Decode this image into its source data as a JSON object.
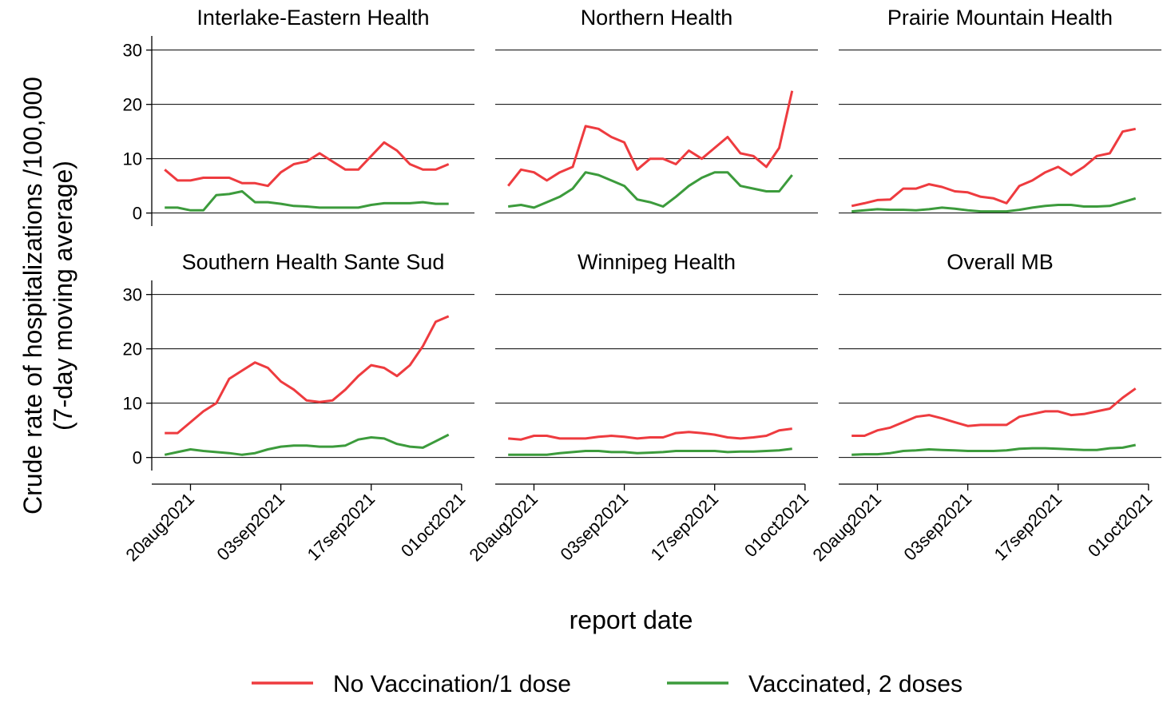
{
  "ylabel": [
    "Crude rate of hospitalizations /100,000",
    "(7-day moving average)"
  ],
  "xlabel": "report date",
  "chart_data": [
    {
      "type": "line",
      "title": "Interlake-Eastern Health",
      "x": [
        "2021-08-16",
        "2021-08-18",
        "2021-08-20",
        "2021-08-22",
        "2021-08-24",
        "2021-08-26",
        "2021-08-28",
        "2021-08-30",
        "2021-09-01",
        "2021-09-03",
        "2021-09-05",
        "2021-09-07",
        "2021-09-09",
        "2021-09-11",
        "2021-09-13",
        "2021-09-15",
        "2021-09-17",
        "2021-09-19",
        "2021-09-21",
        "2021-09-23",
        "2021-09-25",
        "2021-09-27",
        "2021-09-29"
      ],
      "series": [
        {
          "name": "No Vaccination/1 dose",
          "color": "#ee3b3f",
          "values": [
            8,
            6,
            6,
            6.5,
            6.5,
            6.5,
            5.5,
            5.5,
            5,
            7.5,
            9,
            9.5,
            11,
            9.5,
            8,
            8,
            10.5,
            13,
            11.5,
            9,
            8,
            8,
            9
          ]
        },
        {
          "name": "Vaccinated, 2 doses",
          "color": "#3c9b3c",
          "values": [
            1,
            1,
            0.5,
            0.5,
            3.3,
            3.5,
            4,
            2,
            2,
            1.7,
            1.3,
            1.2,
            1,
            1,
            1,
            1,
            1.5,
            1.8,
            1.8,
            1.8,
            2,
            1.7,
            1.7
          ]
        }
      ],
      "xlim": [
        "2021-08-14",
        "2021-10-03"
      ],
      "xticks": [
        {
          "value": "2021-08-20",
          "label": "20aug2021"
        },
        {
          "value": "2021-09-03",
          "label": "03sep2021"
        },
        {
          "value": "2021-09-17",
          "label": "17sep2021"
        },
        {
          "value": "2021-10-01",
          "label": "01oct2021"
        }
      ],
      "ylim": [
        -2.4,
        32.6
      ],
      "yticks": [
        0,
        10,
        20,
        30
      ],
      "grid": true
    },
    {
      "type": "line",
      "title": "Northern Health",
      "x": [
        "2021-08-16",
        "2021-08-18",
        "2021-08-20",
        "2021-08-22",
        "2021-08-24",
        "2021-08-26",
        "2021-08-28",
        "2021-08-30",
        "2021-09-01",
        "2021-09-03",
        "2021-09-05",
        "2021-09-07",
        "2021-09-09",
        "2021-09-11",
        "2021-09-13",
        "2021-09-15",
        "2021-09-17",
        "2021-09-19",
        "2021-09-21",
        "2021-09-23",
        "2021-09-25",
        "2021-09-27",
        "2021-09-29"
      ],
      "series": [
        {
          "name": "No Vaccination/1 dose",
          "color": "#ee3b3f",
          "values": [
            5,
            8,
            7.5,
            6,
            7.5,
            8.5,
            16,
            15.5,
            14,
            13,
            8,
            10,
            10,
            9,
            11.5,
            10,
            12,
            14,
            11,
            10.5,
            8.5,
            12,
            22.5
          ]
        },
        {
          "name": "Vaccinated, 2 doses",
          "color": "#3c9b3c",
          "values": [
            1.2,
            1.5,
            1,
            2,
            3,
            4.5,
            7.5,
            7,
            6,
            5,
            2.5,
            2,
            1.2,
            3,
            5,
            6.5,
            7.5,
            7.5,
            5,
            4.5,
            4,
            4,
            7
          ]
        }
      ],
      "xlim": [
        "2021-08-14",
        "2021-10-03"
      ],
      "xticks": [
        {
          "value": "2021-08-20",
          "label": "20aug2021"
        },
        {
          "value": "2021-09-03",
          "label": "03sep2021"
        },
        {
          "value": "2021-09-17",
          "label": "17sep2021"
        },
        {
          "value": "2021-10-01",
          "label": "01oct2021"
        }
      ],
      "ylim": [
        -2.4,
        32.6
      ],
      "yticks": [
        0,
        10,
        20,
        30
      ],
      "grid": true
    },
    {
      "type": "line",
      "title": "Prairie Mountain Health",
      "x": [
        "2021-08-16",
        "2021-08-18",
        "2021-08-20",
        "2021-08-22",
        "2021-08-24",
        "2021-08-26",
        "2021-08-28",
        "2021-08-30",
        "2021-09-01",
        "2021-09-03",
        "2021-09-05",
        "2021-09-07",
        "2021-09-09",
        "2021-09-11",
        "2021-09-13",
        "2021-09-15",
        "2021-09-17",
        "2021-09-19",
        "2021-09-21",
        "2021-09-23",
        "2021-09-25",
        "2021-09-27",
        "2021-09-29"
      ],
      "series": [
        {
          "name": "No Vaccination/1 dose",
          "color": "#ee3b3f",
          "values": [
            1.3,
            1.8,
            2.4,
            2.5,
            4.5,
            4.5,
            5.3,
            4.8,
            4,
            3.8,
            3,
            2.7,
            1.8,
            5,
            6,
            7.5,
            8.5,
            7,
            8.5,
            10.5,
            11,
            15,
            15.5
          ]
        },
        {
          "name": "Vaccinated, 2 doses",
          "color": "#3c9b3c",
          "values": [
            0.3,
            0.5,
            0.7,
            0.6,
            0.6,
            0.5,
            0.7,
            1,
            0.8,
            0.5,
            0.3,
            0.3,
            0.3,
            0.6,
            1,
            1.3,
            1.5,
            1.5,
            1.2,
            1.2,
            1.3,
            2,
            2.7
          ]
        }
      ],
      "xlim": [
        "2021-08-14",
        "2021-10-03"
      ],
      "xticks": [
        {
          "value": "2021-08-20",
          "label": "20aug2021"
        },
        {
          "value": "2021-09-03",
          "label": "03sep2021"
        },
        {
          "value": "2021-09-17",
          "label": "17sep2021"
        },
        {
          "value": "2021-10-01",
          "label": "01oct2021"
        }
      ],
      "ylim": [
        -2.4,
        32.6
      ],
      "yticks": [
        0,
        10,
        20,
        30
      ],
      "grid": true
    },
    {
      "type": "line",
      "title": "Southern Health Sante Sud",
      "x": [
        "2021-08-16",
        "2021-08-18",
        "2021-08-20",
        "2021-08-22",
        "2021-08-24",
        "2021-08-26",
        "2021-08-28",
        "2021-08-30",
        "2021-09-01",
        "2021-09-03",
        "2021-09-05",
        "2021-09-07",
        "2021-09-09",
        "2021-09-11",
        "2021-09-13",
        "2021-09-15",
        "2021-09-17",
        "2021-09-19",
        "2021-09-21",
        "2021-09-23",
        "2021-09-25",
        "2021-09-27",
        "2021-09-29"
      ],
      "series": [
        {
          "name": "No Vaccination/1 dose",
          "color": "#ee3b3f",
          "values": [
            4.5,
            4.5,
            6.5,
            8.5,
            10,
            14.5,
            16,
            17.5,
            16.5,
            14,
            12.5,
            10.5,
            10.2,
            10.5,
            12.5,
            15,
            17,
            16.5,
            15,
            17,
            20.5,
            25,
            26
          ]
        },
        {
          "name": "Vaccinated, 2 doses",
          "color": "#3c9b3c",
          "values": [
            0.5,
            1,
            1.5,
            1.2,
            1,
            0.8,
            0.5,
            0.8,
            1.5,
            2,
            2.2,
            2.2,
            2,
            2,
            2.2,
            3.3,
            3.7,
            3.5,
            2.5,
            2,
            1.8,
            3,
            4.2
          ]
        }
      ],
      "xlim": [
        "2021-08-14",
        "2021-10-03"
      ],
      "xticks": [
        {
          "value": "2021-08-20",
          "label": "20aug2021"
        },
        {
          "value": "2021-09-03",
          "label": "03sep2021"
        },
        {
          "value": "2021-09-17",
          "label": "17sep2021"
        },
        {
          "value": "2021-10-01",
          "label": "01oct2021"
        }
      ],
      "ylim": [
        -2.4,
        32.6
      ],
      "yticks": [
        0,
        10,
        20,
        30
      ],
      "grid": true
    },
    {
      "type": "line",
      "title": "Winnipeg Health",
      "x": [
        "2021-08-16",
        "2021-08-18",
        "2021-08-20",
        "2021-08-22",
        "2021-08-24",
        "2021-08-26",
        "2021-08-28",
        "2021-08-30",
        "2021-09-01",
        "2021-09-03",
        "2021-09-05",
        "2021-09-07",
        "2021-09-09",
        "2021-09-11",
        "2021-09-13",
        "2021-09-15",
        "2021-09-17",
        "2021-09-19",
        "2021-09-21",
        "2021-09-23",
        "2021-09-25",
        "2021-09-27",
        "2021-09-29"
      ],
      "series": [
        {
          "name": "No Vaccination/1 dose",
          "color": "#ee3b3f",
          "values": [
            3.5,
            3.3,
            4,
            4,
            3.5,
            3.5,
            3.5,
            3.8,
            4,
            3.8,
            3.5,
            3.7,
            3.7,
            4.5,
            4.7,
            4.5,
            4.2,
            3.7,
            3.5,
            3.7,
            4,
            5,
            5.3
          ]
        },
        {
          "name": "Vaccinated, 2 doses",
          "color": "#3c9b3c",
          "values": [
            0.5,
            0.5,
            0.5,
            0.5,
            0.8,
            1,
            1.2,
            1.2,
            1,
            1,
            0.8,
            0.9,
            1,
            1.2,
            1.2,
            1.2,
            1.2,
            1,
            1.1,
            1.1,
            1.2,
            1.3,
            1.6
          ]
        }
      ],
      "xlim": [
        "2021-08-14",
        "2021-10-03"
      ],
      "xticks": [
        {
          "value": "2021-08-20",
          "label": "20aug2021"
        },
        {
          "value": "2021-09-03",
          "label": "03sep2021"
        },
        {
          "value": "2021-09-17",
          "label": "17sep2021"
        },
        {
          "value": "2021-10-01",
          "label": "01oct2021"
        }
      ],
      "ylim": [
        -2.4,
        32.6
      ],
      "yticks": [
        0,
        10,
        20,
        30
      ],
      "grid": true
    },
    {
      "type": "line",
      "title": "Overall MB",
      "x": [
        "2021-08-16",
        "2021-08-18",
        "2021-08-20",
        "2021-08-22",
        "2021-08-24",
        "2021-08-26",
        "2021-08-28",
        "2021-08-30",
        "2021-09-01",
        "2021-09-03",
        "2021-09-05",
        "2021-09-07",
        "2021-09-09",
        "2021-09-11",
        "2021-09-13",
        "2021-09-15",
        "2021-09-17",
        "2021-09-19",
        "2021-09-21",
        "2021-09-23",
        "2021-09-25",
        "2021-09-27",
        "2021-09-29"
      ],
      "series": [
        {
          "name": "No Vaccination/1 dose",
          "color": "#ee3b3f",
          "values": [
            4,
            4,
            5,
            5.5,
            6.5,
            7.5,
            7.8,
            7.2,
            6.5,
            5.8,
            6,
            6,
            6,
            7.5,
            8,
            8.5,
            8.5,
            7.8,
            8,
            8.5,
            9,
            11,
            12.7
          ]
        },
        {
          "name": "Vaccinated, 2 doses",
          "color": "#3c9b3c",
          "values": [
            0.5,
            0.6,
            0.6,
            0.8,
            1.2,
            1.3,
            1.5,
            1.4,
            1.3,
            1.2,
            1.2,
            1.2,
            1.3,
            1.6,
            1.7,
            1.7,
            1.6,
            1.5,
            1.4,
            1.4,
            1.7,
            1.8,
            2.3
          ]
        }
      ],
      "xlim": [
        "2021-08-14",
        "2021-10-03"
      ],
      "xticks": [
        {
          "value": "2021-08-20",
          "label": "20aug2021"
        },
        {
          "value": "2021-09-03",
          "label": "03sep2021"
        },
        {
          "value": "2021-09-17",
          "label": "17sep2021"
        },
        {
          "value": "2021-10-01",
          "label": "01oct2021"
        }
      ],
      "ylim": [
        -2.4,
        32.6
      ],
      "yticks": [
        0,
        10,
        20,
        30
      ],
      "grid": true
    }
  ]
}
